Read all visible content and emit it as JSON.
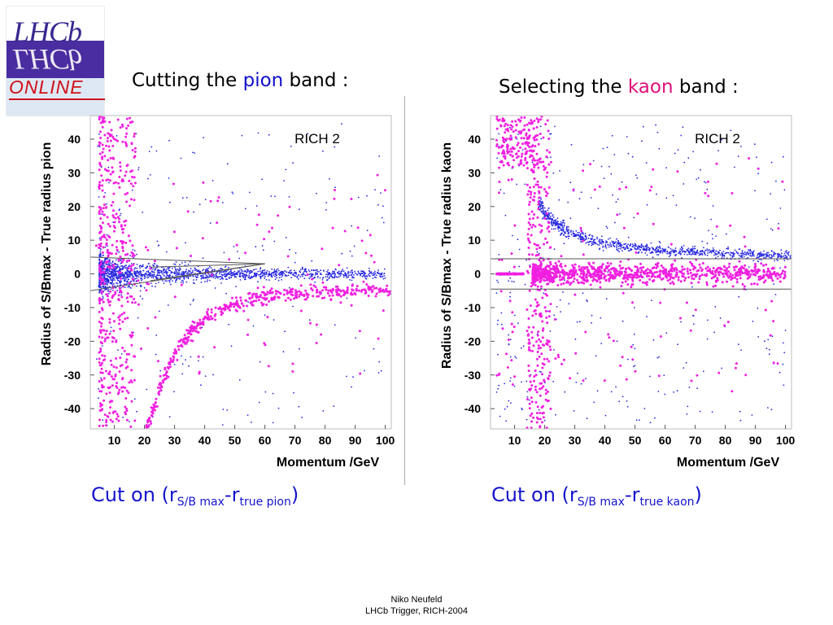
{
  "logo": {
    "text_top": "LHCb",
    "text_bottom": "ONLINE"
  },
  "headings": {
    "left": {
      "pre": "Cutting the ",
      "highlight": "pion",
      "post": " band :"
    },
    "right": {
      "pre": "Selecting the ",
      "highlight": "kaon",
      "post": " band :"
    }
  },
  "captions": {
    "left": {
      "pre": "Cut on (r",
      "sub1": "S/B max",
      "mid": "-r",
      "sub2": "true pion",
      "post": ")"
    },
    "right": {
      "pre": "Cut on (r",
      "sub1": "S/B max",
      "mid": "-r",
      "sub2": "true kaon",
      "post": ")"
    }
  },
  "footer": {
    "line1": "Niko Neufeld",
    "line2": "LHCb Trigger, RICH-2004"
  },
  "colors": {
    "blue_points": "#2828e0",
    "magenta_points": "#f020e0",
    "caption_blue": "#1414cc",
    "kaon_label": "#e0107a",
    "pion_label": "#1010c8"
  },
  "chart_data": [
    {
      "type": "scatter",
      "title": "RICH 2",
      "xlabel": "Momentum /GeV",
      "ylabel": "Radius of S/Bmax - True radius pion",
      "xlim": [
        2,
        102
      ],
      "ylim": [
        -46,
        47
      ],
      "xticks": [
        10,
        20,
        30,
        40,
        50,
        60,
        70,
        80,
        90,
        100
      ],
      "yticks": [
        40,
        30,
        20,
        10,
        0,
        -10,
        -20,
        -30,
        -40
      ],
      "series": [
        {
          "color": "blue",
          "description": "pion band centred at 0, narrowing with momentum"
        },
        {
          "color": "magenta",
          "description": "kaon band at negative values approaching 0, plus a spray at low momentum"
        }
      ],
      "cut_lines": [
        {
          "x": [
            2,
            60
          ],
          "y": [
            5,
            3
          ]
        },
        {
          "x": [
            2,
            60
          ],
          "y": [
            -5,
            3
          ]
        },
        {
          "x": [
            22,
            60
          ],
          "y": [
            2,
            3
          ]
        },
        {
          "x": [
            22,
            60
          ],
          "y": [
            -2,
            3
          ]
        }
      ],
      "grid": false
    },
    {
      "type": "scatter",
      "title": "RICH 2",
      "xlabel": "Momentum /GeV",
      "ylabel": "Radius of S/Bmax - True radius kaon",
      "xlim": [
        2,
        102
      ],
      "ylim": [
        -46,
        47
      ],
      "xticks": [
        10,
        20,
        30,
        40,
        50,
        60,
        70,
        80,
        90,
        100
      ],
      "yticks": [
        40,
        30,
        20,
        10,
        0,
        -10,
        -20,
        -30,
        -40
      ],
      "series": [
        {
          "color": "blue",
          "description": "pion band at positive values decreasing with momentum"
        },
        {
          "color": "magenta",
          "description": "kaon band centred at 0"
        }
      ],
      "cut_lines": [
        {
          "x": [
            2,
            102
          ],
          "y": [
            4.5,
            4.5
          ]
        },
        {
          "x": [
            2,
            102
          ],
          "y": [
            -4.5,
            -4.5
          ]
        }
      ],
      "grid": false
    }
  ]
}
